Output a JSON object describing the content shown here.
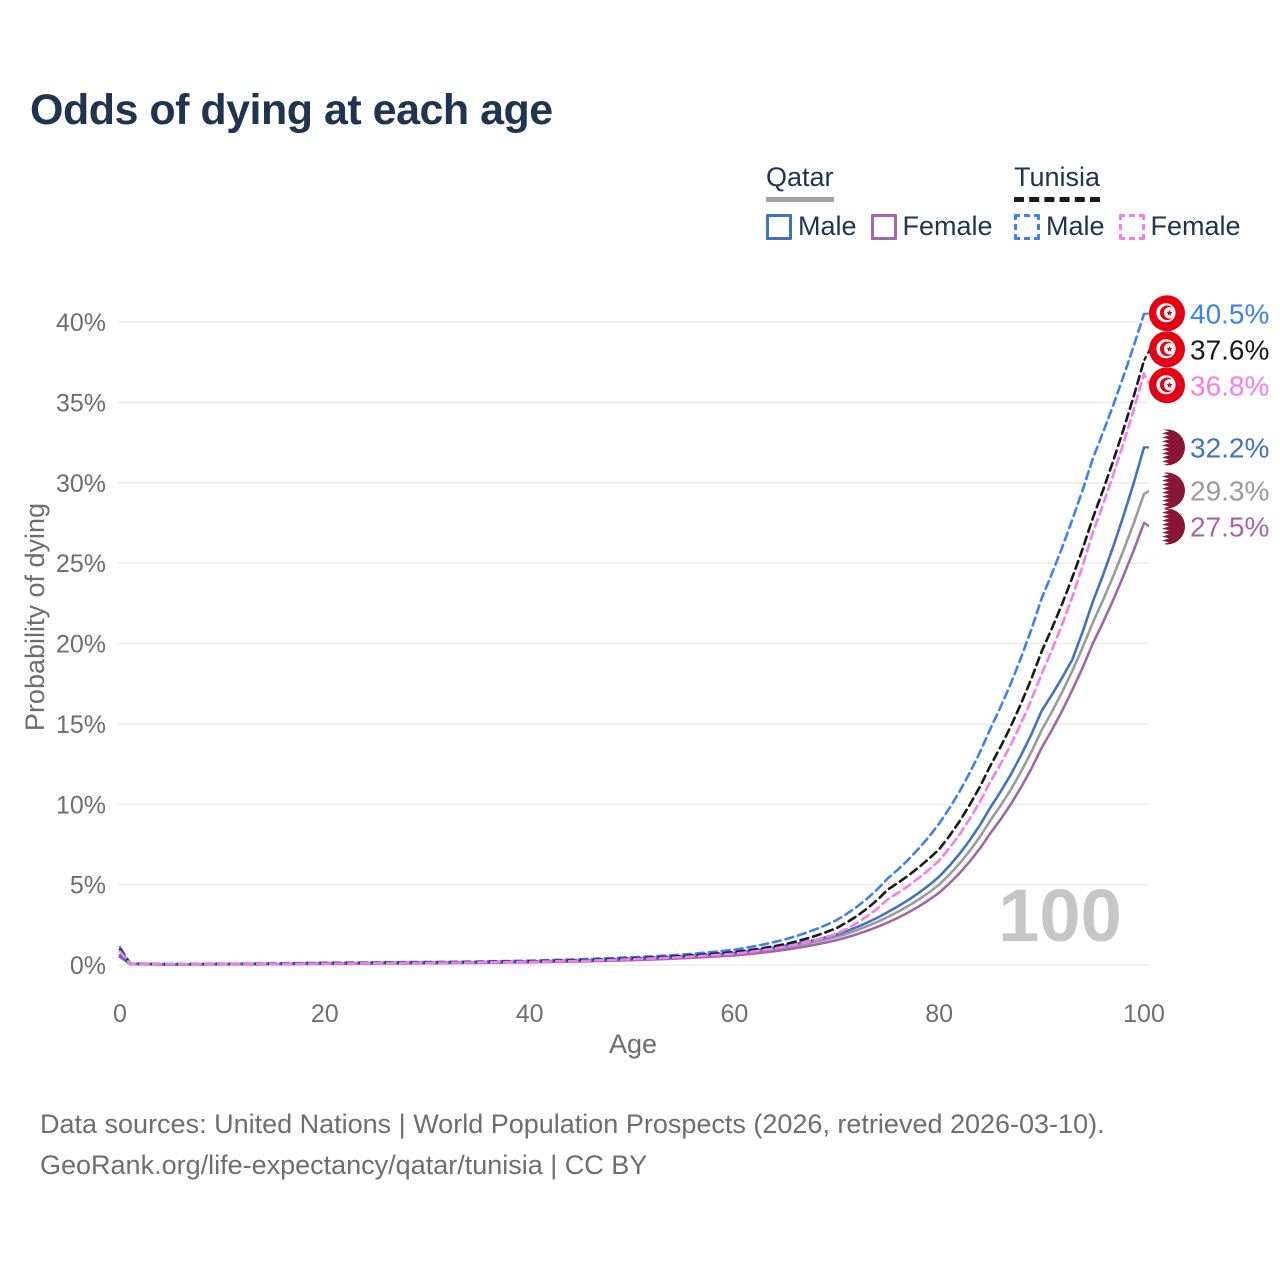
{
  "page": {
    "title": "Odds of dying at each age",
    "title_color": "#1e3450",
    "background": "#ffffff"
  },
  "legend": {
    "groups": [
      {
        "title": "Qatar",
        "line_style": "solid",
        "underline_color": "#a3a3a3",
        "items": [
          {
            "label": "Male",
            "color": "#4173bf"
          },
          {
            "label": "Female",
            "color": "#a765a9"
          }
        ]
      },
      {
        "title": "Tunisia",
        "line_style": "dashed",
        "underline_color": "#1a1a1a",
        "items": [
          {
            "label": "Male",
            "color": "#3c82f4"
          },
          {
            "label": "Female",
            "color": "#f97bef"
          }
        ]
      }
    ]
  },
  "chart_data": {
    "type": "line",
    "title": "Odds of dying at each age",
    "xlabel": "Age",
    "ylabel": "Probability of dying",
    "x_ticks": [
      0,
      20,
      40,
      60,
      80,
      100
    ],
    "y_ticks": [
      0,
      5,
      10,
      15,
      20,
      25,
      30,
      35,
      40
    ],
    "y_tick_suffix": "%",
    "xlim": [
      0,
      100
    ],
    "ylim": [
      0,
      42
    ],
    "grid": "horizontal",
    "gridline_color": "#ececec",
    "axis_text_color": "#6e6e6e",
    "legend_position": "top-right",
    "watermark": "100",
    "watermark_color": "#c6c6c6",
    "ages": [
      0,
      1,
      5,
      10,
      15,
      20,
      25,
      30,
      35,
      40,
      45,
      50,
      55,
      60,
      65,
      70,
      75,
      80,
      85,
      90,
      93,
      95,
      100
    ],
    "series": [
      {
        "name": "Qatar Both sexes",
        "country": "Qatar",
        "sex": "Both",
        "color": "#9b9b9b",
        "dash": false,
        "flag": "qa",
        "end_label": "29.3%",
        "values": [
          0.55,
          0.06,
          0.04,
          0.05,
          0.06,
          0.09,
          0.11,
          0.13,
          0.15,
          0.19,
          0.25,
          0.34,
          0.47,
          0.68,
          1.1,
          1.75,
          3.0,
          5.0,
          9.0,
          14.6,
          18.3,
          21.3,
          29.3
        ]
      },
      {
        "name": "Qatar Female",
        "country": "Qatar",
        "sex": "Female",
        "color": "#a765a9",
        "dash": false,
        "flag": "qa",
        "end_label": "27.5%",
        "values": [
          0.5,
          0.06,
          0.03,
          0.04,
          0.05,
          0.07,
          0.09,
          0.11,
          0.13,
          0.17,
          0.22,
          0.3,
          0.42,
          0.6,
          0.95,
          1.55,
          2.65,
          4.5,
          8.2,
          13.5,
          17.1,
          20.0,
          27.5
        ]
      },
      {
        "name": "Qatar Male",
        "country": "Qatar",
        "sex": "Male",
        "color": "#4173bf",
        "dash": false,
        "flag": "qa",
        "end_label": "32.2%",
        "values": [
          0.6,
          0.07,
          0.04,
          0.05,
          0.07,
          0.1,
          0.12,
          0.14,
          0.17,
          0.21,
          0.27,
          0.37,
          0.52,
          0.75,
          1.2,
          1.9,
          3.3,
          5.5,
          9.8,
          15.8,
          19.0,
          22.6,
          32.2
        ]
      },
      {
        "name": "Tunisia Male",
        "country": "Tunisia",
        "sex": "Male",
        "color": "#3c82f4",
        "dash": true,
        "flag": "tn",
        "end_label": "40.5%",
        "values": [
          1.1,
          0.09,
          0.06,
          0.07,
          0.1,
          0.14,
          0.16,
          0.19,
          0.22,
          0.27,
          0.36,
          0.48,
          0.65,
          0.95,
          1.6,
          2.8,
          5.4,
          8.8,
          14.7,
          22.8,
          27.7,
          31.5,
          40.5
        ]
      },
      {
        "name": "Tunisia Both sexes",
        "country": "Tunisia",
        "sex": "Both",
        "color": "#1a1a1a",
        "dash": true,
        "flag": "tn",
        "end_label": "37.6%",
        "values": [
          0.95,
          0.08,
          0.05,
          0.06,
          0.08,
          0.11,
          0.13,
          0.15,
          0.18,
          0.23,
          0.3,
          0.41,
          0.56,
          0.8,
          1.3,
          2.3,
          4.7,
          7.2,
          12.4,
          19.5,
          24.1,
          27.8,
          37.6
        ]
      },
      {
        "name": "Tunisia Female",
        "country": "Tunisia",
        "sex": "Female",
        "color": "#f97bef",
        "dash": true,
        "flag": "tn",
        "end_label": "36.8%",
        "values": [
          0.85,
          0.07,
          0.05,
          0.05,
          0.07,
          0.09,
          0.11,
          0.13,
          0.16,
          0.2,
          0.26,
          0.36,
          0.5,
          0.7,
          1.15,
          1.95,
          4.1,
          6.5,
          11.4,
          18.1,
          22.9,
          26.9,
          36.8
        ]
      }
    ],
    "flag_colors": {
      "tunisia_red": "#E70013",
      "qatar_maroon": "#8A1538"
    }
  },
  "footer": {
    "line1": "Data sources: United Nations | World Population Prospects (2026, retrieved 2026-03-10).",
    "line2": "GeoRank.org/life-expectancy/qatar/tunisia | CC BY"
  }
}
